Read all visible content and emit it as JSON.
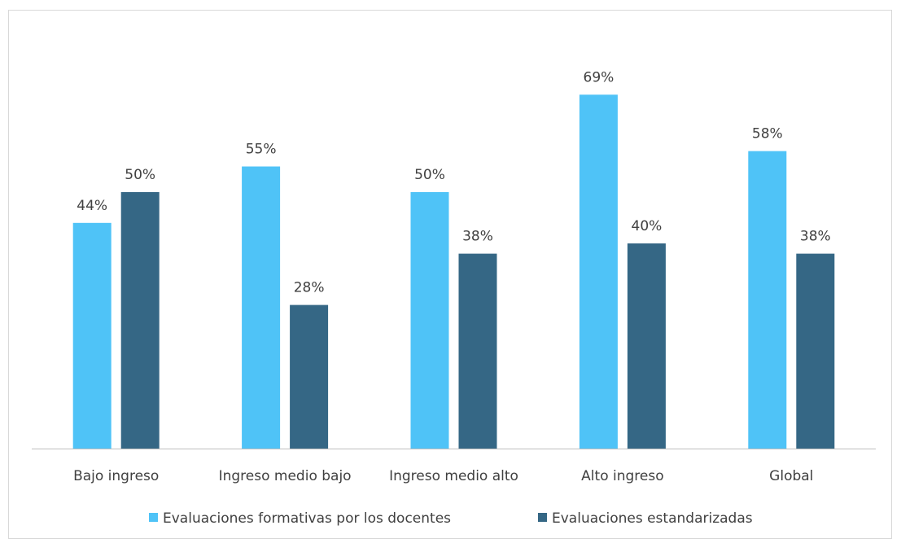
{
  "chart_data": {
    "type": "bar",
    "title": "",
    "xlabel": "",
    "ylabel": "",
    "categories": [
      "Bajo ingreso",
      "Ingreso medio bajo",
      "Ingreso medio alto",
      "Alto ingreso",
      "Global"
    ],
    "series": [
      {
        "name": "Evaluaciones formativas por los docentes",
        "values": [
          44,
          55,
          50,
          69,
          58
        ],
        "labels": [
          "44%",
          "55%",
          "50%",
          "69%",
          "58%"
        ],
        "color": "#4FC3F7"
      },
      {
        "name": "Evaluaciones estandarizadas",
        "values": [
          50,
          28,
          38,
          40,
          38
        ],
        "labels": [
          "50%",
          "28%",
          "38%",
          "40%",
          "38%"
        ],
        "color": "#356785"
      }
    ],
    "ylim": [
      0,
      80
    ],
    "grid": false,
    "legend_position": "bottom",
    "axis_color": "#bfbfbf"
  }
}
